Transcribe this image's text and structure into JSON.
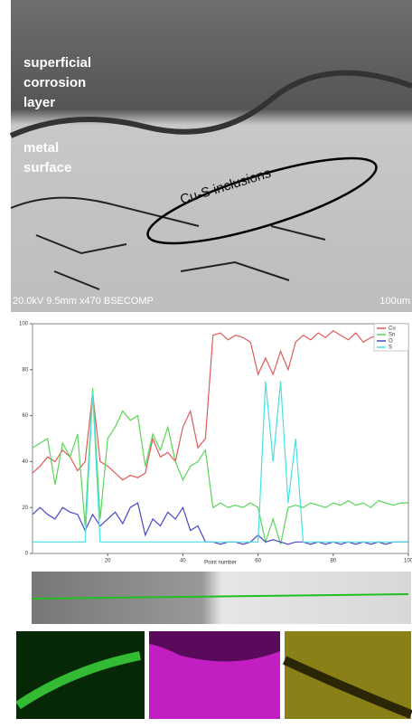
{
  "sem_image": {
    "labels": [
      "superficial",
      "corrosion",
      "layer"
    ],
    "labels2": [
      "metal",
      "surface"
    ],
    "annotation": "Cu-S inclusions",
    "info": "20.0kV 9.5mm x470 BSECOMP",
    "scale": "100um"
  },
  "chart_data": {
    "type": "line",
    "x_label": "Point number",
    "x": [
      0,
      2,
      4,
      6,
      8,
      10,
      12,
      14,
      16,
      18,
      20,
      22,
      24,
      26,
      28,
      30,
      32,
      34,
      36,
      38,
      40,
      42,
      44,
      46,
      48,
      50,
      52,
      54,
      56,
      58,
      60,
      62,
      64,
      66,
      68,
      70,
      72,
      74,
      76,
      78,
      80,
      82,
      84,
      86,
      88,
      90,
      92,
      94,
      96,
      98,
      100
    ],
    "series": [
      {
        "name": "Cu",
        "color": "#e05a5a",
        "values": [
          35,
          38,
          42,
          40,
          45,
          42,
          36,
          40,
          70,
          40,
          38,
          35,
          32,
          34,
          33,
          35,
          50,
          42,
          44,
          40,
          55,
          62,
          46,
          50,
          95,
          96,
          93,
          95,
          94,
          92,
          78,
          85,
          78,
          88,
          80,
          92,
          95,
          93,
          96,
          94,
          97,
          95,
          93,
          96,
          92,
          94,
          95,
          92,
          96,
          93,
          92
        ]
      },
      {
        "name": "Sn",
        "color": "#5ad65a",
        "values": [
          46,
          48,
          50,
          30,
          48,
          42,
          52,
          12,
          72,
          15,
          50,
          55,
          62,
          58,
          60,
          38,
          52,
          45,
          55,
          40,
          32,
          38,
          40,
          45,
          20,
          22,
          20,
          21,
          20,
          22,
          20,
          5,
          15,
          4,
          20,
          21,
          20,
          22,
          21,
          20,
          22,
          21,
          23,
          21,
          22,
          20,
          23,
          22,
          21,
          22,
          22
        ]
      },
      {
        "name": "O",
        "color": "#4848c8",
        "values": [
          17,
          20,
          17,
          15,
          20,
          18,
          17,
          10,
          17,
          12,
          15,
          18,
          13,
          20,
          22,
          8,
          15,
          12,
          18,
          15,
          20,
          10,
          12,
          5,
          5,
          4,
          5,
          5,
          4,
          5,
          8,
          5,
          6,
          5,
          4,
          5,
          5,
          4,
          5,
          4,
          5,
          4,
          5,
          4,
          5,
          4,
          5,
          4,
          5,
          5,
          5
        ]
      },
      {
        "name": "S",
        "color": "#48e0e0",
        "values": [
          5,
          5,
          5,
          5,
          5,
          5,
          5,
          5,
          70,
          5,
          5,
          5,
          5,
          5,
          5,
          5,
          5,
          5,
          5,
          5,
          5,
          5,
          5,
          5,
          5,
          5,
          5,
          5,
          5,
          5,
          5,
          75,
          40,
          75,
          22,
          50,
          5,
          5,
          5,
          5,
          5,
          5,
          5,
          5,
          5,
          5,
          5,
          5,
          5,
          5,
          5
        ]
      }
    ],
    "xlim": [
      0,
      100
    ],
    "ylim": [
      0,
      100
    ],
    "xticks": [
      20,
      40,
      60,
      80,
      100
    ],
    "yticks": [
      0,
      20,
      40,
      60,
      80,
      100
    ]
  }
}
